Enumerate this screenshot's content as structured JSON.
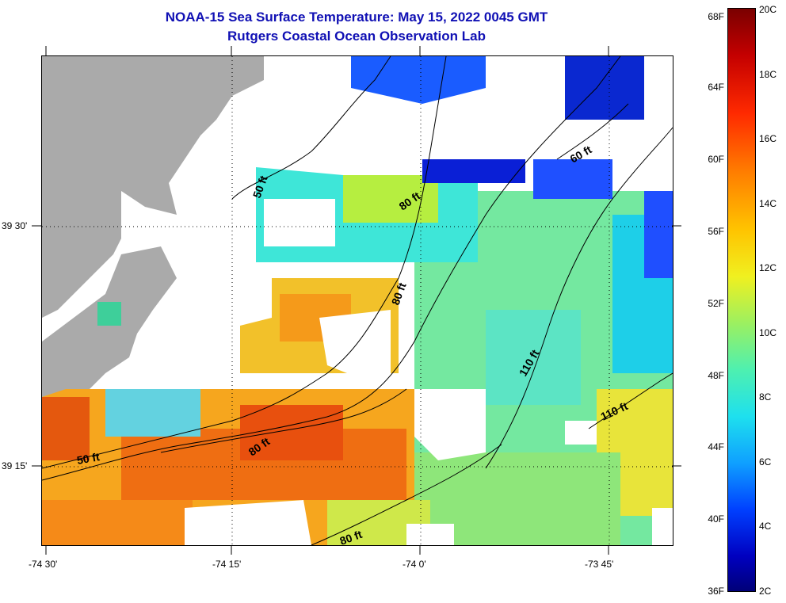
{
  "title": {
    "line1": "NOAA-15 Sea Surface Temperature:  May 15, 2022 0045 GMT",
    "line2": "Rutgers Coastal Ocean Observation Lab"
  },
  "map": {
    "lat_ticks": [
      "39 30'",
      "39 15'"
    ],
    "lon_ticks": [
      "-74 30'",
      "-74 15'",
      "-74 0'",
      "-73 45'"
    ],
    "contour_labels": [
      "50 ft",
      "80 ft",
      "80 ft",
      "80 ft",
      "110 ft",
      "110 ft",
      "60 ft",
      "50 ft",
      "80 ft"
    ],
    "land_color": "#aaaaaa",
    "cloud_color": "#ffffff"
  },
  "colorbar": {
    "fahrenheit": [
      "68F",
      "64F",
      "60F",
      "56F",
      "52F",
      "48F",
      "44F",
      "40F",
      "36F"
    ],
    "celsius": [
      "20C",
      "18C",
      "16C",
      "14C",
      "12C",
      "10C",
      "8C",
      "6C",
      "4C",
      "2C"
    ],
    "range_c": [
      2,
      20
    ],
    "colormap": "jet"
  }
}
